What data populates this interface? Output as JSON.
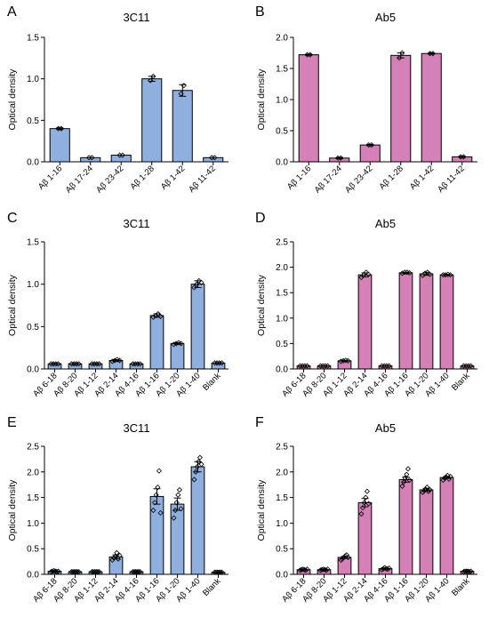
{
  "chart_data": [
    {
      "type": "bar",
      "panel_letter": "A",
      "title": "3C11",
      "ylabel": "Optical density",
      "ylim": [
        0,
        1.5
      ],
      "yticks": [
        "0.0",
        "0.5",
        "1.0",
        "1.5"
      ],
      "categories": [
        "Aβ 1-16",
        "Aβ 17-24",
        "Aβ 23-42",
        "Aβ 1-28",
        "Aβ 1-42",
        "Aβ 11-42"
      ],
      "values": [
        0.4,
        0.05,
        0.08,
        1.0,
        0.86,
        0.05
      ],
      "errors": [
        0.01,
        0.0,
        0.0,
        0.03,
        0.07,
        0.0
      ],
      "points": [
        [
          0.4,
          0.4
        ],
        [
          0.05,
          0.05
        ],
        [
          0.08,
          0.08
        ],
        [
          0.98,
          1.03
        ],
        [
          0.82,
          0.92
        ],
        [
          0.05,
          0.05
        ]
      ],
      "point_marker": "diamond",
      "color": "#8FB0DE"
    },
    {
      "type": "bar",
      "panel_letter": "B",
      "title": "Ab5",
      "ylabel": "Optical density",
      "ylim": [
        0,
        2.0
      ],
      "yticks": [
        "0.0",
        "0.5",
        "1.0",
        "1.5",
        "2.0"
      ],
      "categories": [
        "Aβ 1-16",
        "Aβ 17-24",
        "Aβ 23-42",
        "Aβ 1-28",
        "Aβ 1-42",
        "Aβ 11-42"
      ],
      "values": [
        1.72,
        0.06,
        0.27,
        1.71,
        1.74,
        0.08
      ],
      "errors": [
        0.01,
        0.01,
        0.01,
        0.04,
        0.01,
        0.01
      ],
      "points": [
        [
          1.72,
          1.72
        ],
        [
          0.06,
          0.06
        ],
        [
          0.27,
          0.27
        ],
        [
          1.67,
          1.75
        ],
        [
          1.74,
          1.74
        ],
        [
          0.08,
          0.08
        ]
      ],
      "point_marker": "diamond",
      "color": "#D680B8"
    },
    {
      "type": "bar",
      "panel_letter": "C",
      "title": "3C11",
      "ylabel": "Optical density",
      "ylim": [
        0,
        1.5
      ],
      "yticks": [
        "0.0",
        "0.5",
        "1.0",
        "1.5"
      ],
      "categories": [
        "Aβ 6-18",
        "Aβ 8-20",
        "Aβ 1-12",
        "Aβ 2-14",
        "Aβ 4-16",
        "Aβ 1-16",
        "Aβ 1-20",
        "Aβ 1-40",
        "Blank"
      ],
      "values": [
        0.06,
        0.06,
        0.06,
        0.1,
        0.06,
        0.63,
        0.3,
        1.0,
        0.07
      ],
      "errors": [
        0.005,
        0.005,
        0.005,
        0.01,
        0.005,
        0.02,
        0.01,
        0.04,
        0.005
      ],
      "points": [
        [
          0.06,
          0.06,
          0.06,
          0.06
        ],
        [
          0.06,
          0.06,
          0.06,
          0.06
        ],
        [
          0.06,
          0.06,
          0.06,
          0.06
        ],
        [
          0.09,
          0.1,
          0.11,
          0.1
        ],
        [
          0.06,
          0.06,
          0.06,
          0.06
        ],
        [
          0.61,
          0.63,
          0.65,
          0.62
        ],
        [
          0.29,
          0.3,
          0.31,
          0.3
        ],
        [
          0.96,
          1.0,
          1.04,
          1.02
        ],
        [
          0.07,
          0.07,
          0.07,
          0.07
        ]
      ],
      "point_marker": "diamond",
      "color": "#8FB0DE"
    },
    {
      "type": "bar",
      "panel_letter": "D",
      "title": "Ab5",
      "ylabel": "Optical density",
      "ylim": [
        0,
        2.5
      ],
      "yticks": [
        "0.0",
        "0.5",
        "1.0",
        "1.5",
        "2.0",
        "2.5"
      ],
      "categories": [
        "Aβ 6-18",
        "Aβ 8-20",
        "Aβ 1-12",
        "Aβ 2-14",
        "Aβ 4-16",
        "Aβ 1-16",
        "Aβ 1-20",
        "Aβ 1-40",
        "Blank"
      ],
      "values": [
        0.06,
        0.06,
        0.16,
        1.85,
        0.06,
        1.89,
        1.87,
        1.85,
        0.06
      ],
      "errors": [
        0.005,
        0.005,
        0.01,
        0.04,
        0.005,
        0.01,
        0.03,
        0.01,
        0.005
      ],
      "points": [
        [
          0.06,
          0.06,
          0.06,
          0.06
        ],
        [
          0.06,
          0.06,
          0.06,
          0.06
        ],
        [
          0.15,
          0.16,
          0.17,
          0.16
        ],
        [
          1.8,
          1.85,
          1.9,
          1.86
        ],
        [
          0.06,
          0.06,
          0.06,
          0.06
        ],
        [
          1.88,
          1.9,
          1.9,
          1.89
        ],
        [
          1.84,
          1.88,
          1.9,
          1.86
        ],
        [
          1.85,
          1.85,
          1.86,
          1.85
        ],
        [
          0.06,
          0.06,
          0.06,
          0.06
        ]
      ],
      "point_marker": "diamond",
      "color": "#D680B8"
    },
    {
      "type": "bar",
      "panel_letter": "E",
      "title": "3C11",
      "ylabel": "Optical density",
      "ylim": [
        0,
        2.5
      ],
      "yticks": [
        "0.0",
        "0.5",
        "1.0",
        "1.5",
        "2.0",
        "2.5"
      ],
      "categories": [
        "Aβ 6-18",
        "Aβ 8-20",
        "Aβ 1-12",
        "Aβ 2-14",
        "Aβ 4-16",
        "Aβ 1-16",
        "Aβ 1-20",
        "Aβ 1-40",
        "Blank"
      ],
      "values": [
        0.06,
        0.05,
        0.05,
        0.34,
        0.05,
        1.52,
        1.37,
        2.1,
        0.04
      ],
      "errors": [
        0.01,
        0.005,
        0.005,
        0.04,
        0.005,
        0.15,
        0.12,
        0.1,
        0.005
      ],
      "points": [
        [
          0.05,
          0.06,
          0.07,
          0.06,
          0.05,
          0.06
        ],
        [
          0.05,
          0.05,
          0.05,
          0.05,
          0.05,
          0.05
        ],
        [
          0.05,
          0.05,
          0.05,
          0.05,
          0.05,
          0.05
        ],
        [
          0.28,
          0.32,
          0.35,
          0.42,
          0.3,
          0.37
        ],
        [
          0.05,
          0.05,
          0.05,
          0.05,
          0.05,
          0.05
        ],
        [
          1.25,
          1.4,
          1.55,
          1.7,
          2.02,
          1.2
        ],
        [
          1.1,
          1.25,
          1.4,
          1.55,
          1.65,
          1.28
        ],
        [
          1.85,
          2.0,
          2.1,
          2.2,
          2.28,
          2.15
        ],
        [
          0.04,
          0.04,
          0.04,
          0.04,
          0.04,
          0.04
        ]
      ],
      "point_marker": "diamond",
      "color": "#8FB0DE"
    },
    {
      "type": "bar",
      "panel_letter": "F",
      "title": "Ab5",
      "ylabel": "Optical density",
      "ylim": [
        0,
        2.5
      ],
      "yticks": [
        "0.0",
        "0.5",
        "1.0",
        "1.5",
        "2.0",
        "2.5"
      ],
      "categories": [
        "Aβ 6-18",
        "Aβ 8-20",
        "Aβ 1-12",
        "Aβ 2-14",
        "Aβ 4-16",
        "Aβ 1-16",
        "Aβ 1-20",
        "Aβ 1-40",
        "Blank"
      ],
      "values": [
        0.09,
        0.09,
        0.33,
        1.4,
        0.11,
        1.85,
        1.65,
        1.89,
        0.06
      ],
      "errors": [
        0.01,
        0.01,
        0.02,
        0.08,
        0.01,
        0.05,
        0.03,
        0.02,
        0.005
      ],
      "points": [
        [
          0.08,
          0.09,
          0.1,
          0.09,
          0.08,
          0.1
        ],
        [
          0.08,
          0.09,
          0.1,
          0.09,
          0.08,
          0.1
        ],
        [
          0.28,
          0.3,
          0.33,
          0.36,
          0.38,
          0.33
        ],
        [
          1.18,
          1.3,
          1.4,
          1.5,
          1.62,
          1.38
        ],
        [
          0.09,
          0.11,
          0.13,
          0.11,
          0.1,
          0.12
        ],
        [
          1.72,
          1.8,
          1.88,
          1.95,
          2.06,
          1.84
        ],
        [
          1.6,
          1.63,
          1.66,
          1.7,
          1.62,
          1.65
        ],
        [
          1.84,
          1.88,
          1.9,
          1.93,
          1.86,
          1.91
        ],
        [
          0.05,
          0.06,
          0.06,
          0.06,
          0.05,
          0.06
        ]
      ],
      "point_marker": "diamond",
      "color": "#D680B8"
    }
  ]
}
